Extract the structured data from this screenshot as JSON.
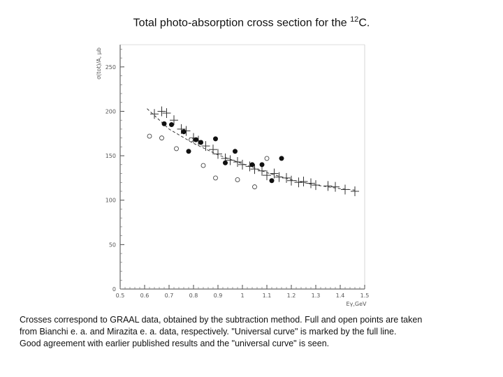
{
  "title": {
    "text": "Total photo-absorption cross section for the ",
    "superscript": "12",
    "suffix": "C."
  },
  "caption": {
    "line1": "Crosses correspond to GRAAL data, obtained by the subtraction method.  Full and open points are taken",
    "line2": "from Bianchi e. a. and Mirazita e. a. data, respectively. \"Universal curve\" is marked by the full line.",
    "line3": "Good agreement with earlier published results and the \"universal curve\" is seen."
  },
  "chart_data": {
    "type": "scatter",
    "title": "Total photo-absorption cross section for the 12C.",
    "xlabel": "Eγ,GeV",
    "ylabel": "σ(tot)/A, μb",
    "xlim": [
      0.5,
      1.5
    ],
    "ylim": [
      0,
      275
    ],
    "xticks": [
      0.5,
      0.6,
      0.7,
      0.8,
      0.9,
      1,
      1.1,
      1.2,
      1.3,
      1.4,
      1.5
    ],
    "xtick_labels": [
      "0.5",
      "0.6",
      "0.7",
      "0.8",
      "0.9",
      "1",
      "1.1",
      "1.2",
      "1.3",
      "1.4",
      "1.5"
    ],
    "yticks": [
      0,
      50,
      100,
      150,
      200,
      250
    ],
    "ytick_labels": [
      "0",
      "50",
      "100",
      "150",
      "200",
      "250"
    ],
    "series": [
      {
        "name": "GRAAL (crosses)",
        "marker": "cross",
        "x": [
          0.64,
          0.67,
          0.69,
          0.72,
          0.75,
          0.77,
          0.8,
          0.82,
          0.85,
          0.88,
          0.9,
          0.93,
          0.95,
          0.98,
          1.0,
          1.03,
          1.05,
          1.08,
          1.1,
          1.13,
          1.15,
          1.18,
          1.2,
          1.23,
          1.25,
          1.28,
          1.3,
          1.35,
          1.38,
          1.42,
          1.46
        ],
        "y": [
          197,
          200,
          198,
          190,
          180,
          178,
          170,
          167,
          161,
          157,
          152,
          147,
          145,
          143,
          140,
          138,
          135,
          133,
          128,
          130,
          126,
          125,
          122,
          120,
          121,
          119,
          117,
          116,
          115,
          112,
          110
        ]
      },
      {
        "name": "Bianchi e. a. (full points)",
        "marker": "filled-circle",
        "x": [
          0.68,
          0.71,
          0.76,
          0.78,
          0.81,
          0.83,
          0.89,
          0.93,
          0.97,
          1.04,
          1.08,
          1.12,
          1.16
        ],
        "y": [
          186,
          185,
          177,
          155,
          168,
          165,
          169,
          142,
          155,
          140,
          140,
          122,
          147
        ]
      },
      {
        "name": "Mirazita e. a. (open points)",
        "marker": "open-circle",
        "x": [
          0.62,
          0.67,
          0.73,
          0.79,
          0.84,
          0.89,
          0.98,
          1.05,
          1.1
        ],
        "y": [
          172,
          170,
          158,
          168,
          139,
          125,
          123,
          115,
          147
        ]
      },
      {
        "name": "Universal curve",
        "marker": "none",
        "line": "dashed",
        "x": [
          0.61,
          0.7,
          0.8,
          0.9,
          1.0,
          1.1,
          1.2,
          1.3,
          1.4,
          1.47
        ],
        "y": [
          203,
          180,
          164,
          151,
          141,
          131,
          123,
          117,
          113,
          111
        ]
      }
    ]
  }
}
